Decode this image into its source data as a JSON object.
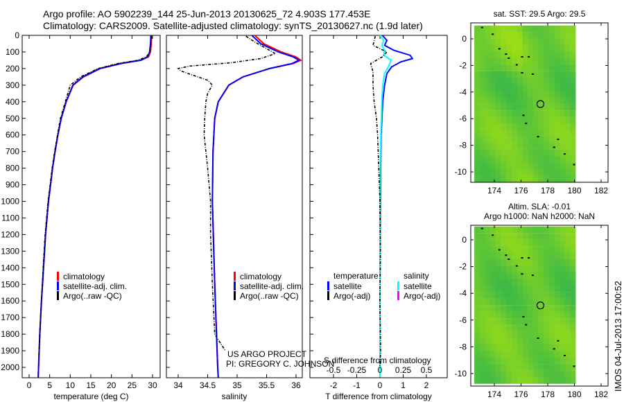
{
  "title_line1": "Argo profile: AO 5902239_144 25-Jun-2013 20130625_72 4.903S 177.453E",
  "title_line2": "Climatology: CARS2009. Satellite-adjusted climatology: synTS_20130627.nc (1.9d later)",
  "colors": {
    "climatology": "#ff0000",
    "satellite": "#0000ff",
    "argo": "#000000",
    "sal_satellite": "#00ffff",
    "sal_argo": "#ff00ff"
  },
  "chart_data": [
    {
      "type": "line",
      "name": "temperature",
      "xlabel": "temperature (deg C)",
      "ylabel": "depth",
      "xlim": [
        -2,
        32
      ],
      "ylim": [
        2060,
        0
      ],
      "xticks": [
        0,
        5,
        10,
        15,
        20,
        25,
        30
      ],
      "yticks": [
        0,
        100,
        200,
        300,
        400,
        500,
        600,
        700,
        800,
        900,
        1000,
        1100,
        1200,
        1300,
        1400,
        1500,
        1600,
        1700,
        1800,
        1900,
        2000
      ],
      "legend": [
        "climatology",
        "satellite-adj. clim.",
        "Argo(..raw -QC)"
      ],
      "series": [
        {
          "name": "climatology",
          "depth": [
            0,
            50,
            100,
            130,
            150,
            170,
            200,
            250,
            300,
            400,
            500,
            600,
            700,
            800,
            900,
            1000,
            1200,
            1400,
            1600,
            1800,
            2000,
            2060
          ],
          "values": [
            29.8,
            29.7,
            29.5,
            29,
            27,
            22,
            17,
            13,
            10.6,
            9,
            7.8,
            7,
            6.3,
            5.7,
            5.2,
            4.7,
            4,
            3.5,
            3,
            2.6,
            2.3,
            2.2
          ]
        },
        {
          "name": "satellite-adj. clim.",
          "depth": [
            0,
            50,
            100,
            130,
            150,
            170,
            200,
            250,
            300,
            400,
            500,
            600,
            700,
            800,
            900,
            1000,
            1200,
            1400,
            1600,
            1800,
            2000,
            2060
          ],
          "values": [
            29.6,
            29.5,
            29.3,
            28.8,
            27.2,
            22.4,
            17.3,
            13.2,
            10.7,
            9,
            7.8,
            7,
            6.3,
            5.7,
            5.2,
            4.7,
            4,
            3.5,
            3,
            2.6,
            2.3,
            2.2
          ]
        },
        {
          "name": "Argo(..raw -QC)",
          "depth": [
            5,
            50,
            100,
            130,
            150,
            170,
            200,
            250,
            300,
            400,
            500,
            600,
            700,
            800,
            900,
            1000,
            1200,
            1400,
            1600,
            1800,
            1950
          ],
          "values": [
            29.7,
            29.6,
            29.3,
            28.5,
            26.5,
            21.5,
            16.8,
            12.5,
            10,
            8.8,
            7.6,
            6.9,
            6.2,
            5.6,
            5.1,
            4.6,
            3.9,
            3.4,
            3,
            2.6,
            2.35
          ]
        }
      ]
    },
    {
      "type": "line",
      "name": "salinity",
      "xlabel": "salinity",
      "ylabel": "depth",
      "xlim": [
        33.8,
        36.1
      ],
      "ylim": [
        2060,
        0
      ],
      "xticks": [
        34,
        34.5,
        35,
        35.5,
        36
      ],
      "legend": [
        "climatology",
        "satellite-adj. clim.",
        "Argo(..raw -QC)"
      ],
      "annotation": [
        "US ARGO PROJECT",
        "PI: GREGORY C. JOHNSON"
      ],
      "series": [
        {
          "name": "climatology",
          "depth": [
            0,
            50,
            100,
            130,
            150,
            170,
            200,
            250,
            300,
            400,
            500,
            700,
            1000,
            1500,
            2000,
            2060
          ],
          "values": [
            35.3,
            35.45,
            35.75,
            36.0,
            36.08,
            35.95,
            35.55,
            35.1,
            34.86,
            34.68,
            34.62,
            34.59,
            34.58,
            34.62,
            34.67,
            34.68
          ]
        },
        {
          "name": "satellite-adj. clim.",
          "depth": [
            0,
            50,
            100,
            130,
            150,
            170,
            200,
            250,
            300,
            400,
            500,
            700,
            1000,
            1500,
            2000,
            2060
          ],
          "values": [
            35.25,
            35.4,
            35.7,
            35.95,
            36.05,
            35.93,
            35.55,
            35.1,
            34.86,
            34.68,
            34.62,
            34.59,
            34.58,
            34.62,
            34.67,
            34.68
          ]
        },
        {
          "name": "Argo(..raw -QC)",
          "depth": [
            5,
            40,
            80,
            110,
            140,
            165,
            185,
            200,
            215,
            240,
            270,
            300,
            350,
            400,
            500,
            600,
            800,
            1000,
            1200,
            1500,
            1800,
            1900
          ],
          "values": [
            35.15,
            35.3,
            35.5,
            35.65,
            35.4,
            34.9,
            34.2,
            34.0,
            34.05,
            34.25,
            34.5,
            34.58,
            34.5,
            34.47,
            34.45,
            34.44,
            34.5,
            34.55,
            34.55,
            34.58,
            34.62,
            34.8
          ]
        }
      ]
    },
    {
      "type": "line",
      "name": "difference",
      "xlabel": "T difference from climatology",
      "x2label": "S difference from climatology",
      "xlim": [
        -3,
        3
      ],
      "x2lim": [
        -0.75,
        0.75
      ],
      "ylim": [
        2060,
        0
      ],
      "xticks": [
        -2,
        -1,
        0,
        1,
        2
      ],
      "x2ticks": [
        -0.5,
        -0.25,
        0,
        0.25,
        0.5
      ],
      "legend": {
        "temperature_header": "temperature",
        "salinity_header": "salinity",
        "satellite": "satellite",
        "argo": "Argo(-adj)"
      },
      "series": [
        {
          "name": "T satellite",
          "depth": [
            0,
            30,
            60,
            90,
            120,
            140,
            160,
            190,
            230,
            300,
            400,
            600,
            900,
            1500,
            2060
          ],
          "values": [
            0.1,
            0.3,
            0.2,
            0.6,
            1.3,
            1.4,
            0.9,
            0.5,
            0.3,
            0.2,
            0.12,
            0.05,
            0.02,
            0,
            0
          ]
        },
        {
          "name": "S satellite",
          "depth": [
            0,
            30,
            60,
            90,
            120,
            150,
            190,
            230,
            300,
            400,
            600,
            900,
            1500,
            2060
          ],
          "values": [
            0,
            0.04,
            0.02,
            0.05,
            0.04,
            0.12,
            0.09,
            0.05,
            0.03,
            0.02,
            0.01,
            0,
            0,
            0
          ]
        },
        {
          "name": "T Argo(-adj)",
          "depth": [
            5,
            60,
            100,
            130,
            170,
            220,
            300,
            400,
            500,
            600,
            800,
            1000,
            1300,
            1600,
            1900,
            2000
          ],
          "values": [
            -0.2,
            -0.3,
            0.3,
            0.1,
            -0.4,
            -0.3,
            -0.3,
            -0.25,
            -0.15,
            -0.1,
            -0.05,
            0,
            0.02,
            0,
            0.03,
            0
          ]
        }
      ]
    },
    {
      "type": "heatmap",
      "name": "sst-map",
      "title": "sat. SST: 29.5  Argo: 29.5",
      "xlim": [
        172.5,
        182.5
      ],
      "ylim": [
        -10.8,
        1
      ],
      "xticks": [
        174,
        176,
        178,
        180,
        182
      ],
      "yticks": [
        0,
        -2,
        -4,
        -6,
        -8,
        -10
      ],
      "argo_position": {
        "lon": 177.453,
        "lat": -4.903
      }
    },
    {
      "type": "heatmap",
      "name": "sla-map",
      "title": "Altim. SLA: -0.01",
      "subtitle": "Argo h1000: NaN h2000: NaN",
      "xlim": [
        172.5,
        182.5
      ],
      "ylim": [
        -10.8,
        1
      ],
      "xticks": [
        174,
        176,
        178,
        180,
        182
      ],
      "yticks": [
        0,
        -2,
        -4,
        -6,
        -8,
        -10
      ],
      "argo_position": {
        "lon": 177.453,
        "lat": -4.903
      }
    }
  ],
  "footer_stamp": "IMOS 04-Jul-2013 17:00:52"
}
